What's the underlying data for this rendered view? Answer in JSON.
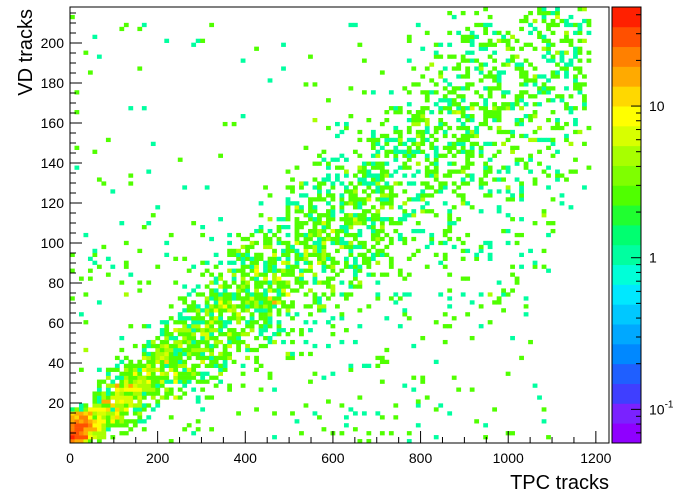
{
  "chart_data": {
    "type": "heatmap",
    "title": "",
    "xlabel": "TPC tracks",
    "ylabel": "VD tracks",
    "xlim": [
      0,
      1230
    ],
    "ylim": [
      0,
      218
    ],
    "log_z": true,
    "zlim": [
      0.06,
      45
    ],
    "grid": false,
    "x_ticks": [
      0,
      200,
      400,
      600,
      800,
      1000,
      1200
    ],
    "x_tick_labels": [
      "0",
      "200",
      "400",
      "600",
      "800",
      "1000",
      "1200"
    ],
    "y_ticks": [
      20,
      40,
      60,
      80,
      100,
      120,
      140,
      160,
      180,
      200
    ],
    "y_tick_labels": [
      "20",
      "40",
      "60",
      "80",
      "100",
      "120",
      "140",
      "160",
      "180",
      "200"
    ],
    "colorbar_ticks": [
      0.1,
      1,
      10
    ],
    "colorbar_tick_labels": [
      "10^-1",
      "1",
      "10"
    ],
    "colorbar_position": "right",
    "correlation": {
      "description_points": [
        [
          30,
          5
        ],
        [
          200,
          38
        ],
        [
          400,
          72
        ],
        [
          600,
          100
        ],
        [
          800,
          132
        ],
        [
          1000,
          165
        ],
        [
          1150,
          210
        ]
      ],
      "slope": 0.172,
      "intercept": 2,
      "peak_count_region": [
        [
          60,
          10
        ],
        [
          200,
          40
        ]
      ]
    },
    "palette": [
      "#8f00ff",
      "#7a22ff",
      "#3f3fff",
      "#1f5fff",
      "#0088ff",
      "#00a8ff",
      "#00c8ff",
      "#00e8ff",
      "#00ffd8",
      "#00ffa0",
      "#00ff70",
      "#20ff30",
      "#50ff00",
      "#7fff00",
      "#a8ff00",
      "#d8ff00",
      "#ffff00",
      "#ffd800",
      "#ffaa00",
      "#ff8000",
      "#ff5000",
      "#ff2000"
    ]
  }
}
